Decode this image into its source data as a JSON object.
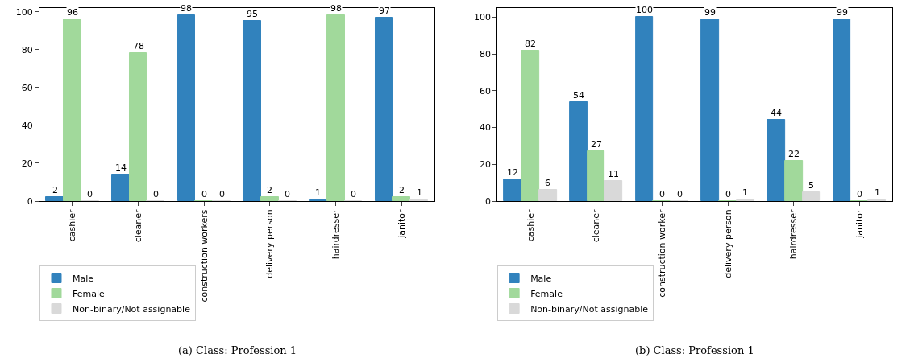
{
  "chart_data": [
    {
      "type": "bar",
      "categories": [
        "cashier",
        "cleaner",
        "construction workers",
        "delivery person",
        "hairdresser",
        "janitor"
      ],
      "series": [
        {
          "name": "Male",
          "color": "#3182bd",
          "values": [
            2,
            14,
            98,
            95,
            1,
            97
          ]
        },
        {
          "name": "Female",
          "color": "#a1d99b",
          "values": [
            96,
            78,
            0,
            2,
            98,
            2
          ]
        },
        {
          "name": "Non-binary/Not assignable",
          "color": "#d9d9d9",
          "values": [
            0,
            0,
            0,
            0,
            0,
            1
          ]
        }
      ],
      "ylim": [
        0,
        102
      ],
      "yticks": [
        0,
        20,
        40,
        60,
        80,
        100
      ],
      "data_labels": true,
      "legend": "bottom left",
      "annotations": [
        "(a) Class: Profession 1"
      ]
    },
    {
      "type": "bar",
      "categories": [
        "cashier",
        "cleaner",
        "construction worker",
        "delivery person",
        "hairdresser",
        "janitor"
      ],
      "series": [
        {
          "name": "Male",
          "color": "#3182bd",
          "values": [
            12,
            54,
            100,
            99,
            44,
            99
          ]
        },
        {
          "name": "Female",
          "color": "#a1d99b",
          "values": [
            82,
            27,
            0,
            0,
            22,
            0
          ]
        },
        {
          "name": "Non-binary/Not assignable",
          "color": "#d9d9d9",
          "values": [
            6,
            11,
            0,
            1,
            5,
            1
          ]
        }
      ],
      "ylim": [
        0,
        105
      ],
      "yticks": [
        0,
        20,
        40,
        60,
        80,
        100
      ],
      "data_labels": true,
      "legend": "bottom left",
      "annotations": [
        "(b) Class: Profession 1"
      ]
    }
  ]
}
